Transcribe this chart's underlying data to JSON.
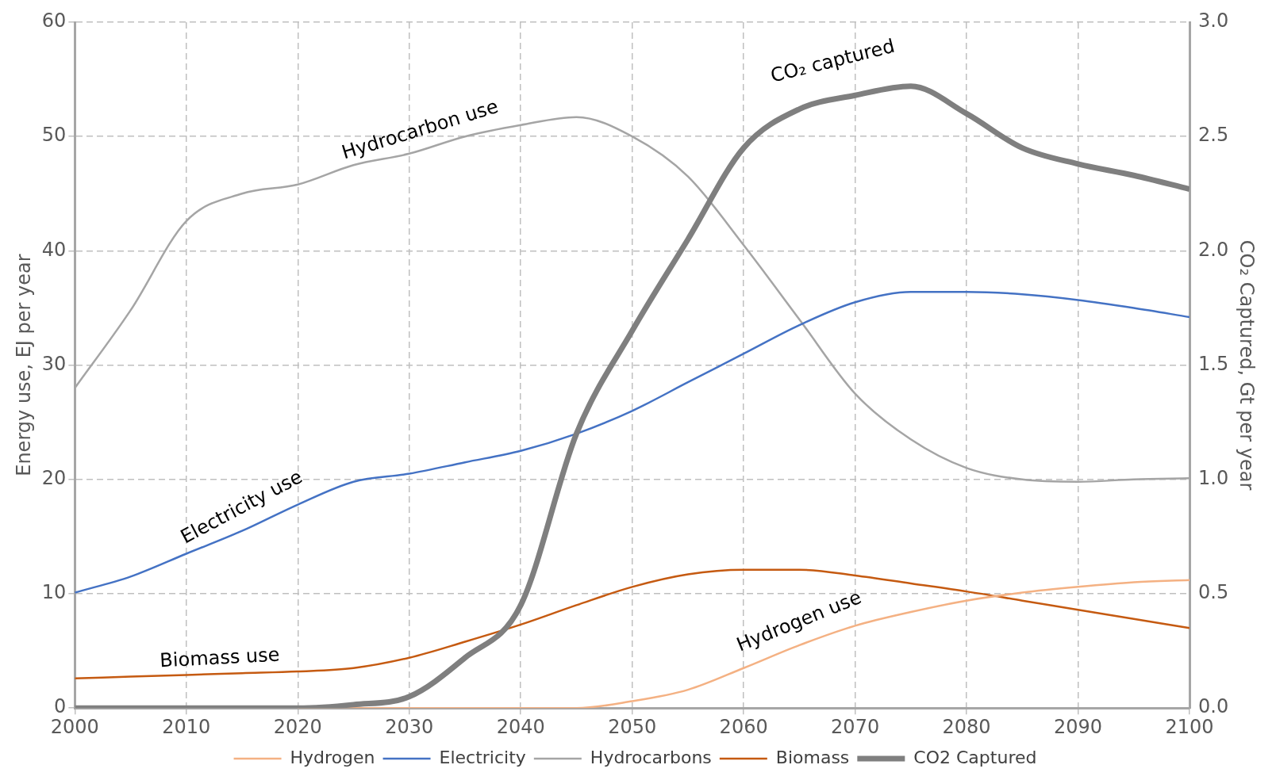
{
  "chart_data": {
    "type": "line",
    "xlabel": null,
    "ylabel": "Energy use, EJ per year",
    "y2label": "CO₂ Captured, Gt per year",
    "x": [
      2000,
      2005,
      2010,
      2015,
      2020,
      2025,
      2030,
      2035,
      2040,
      2045,
      2050,
      2055,
      2060,
      2065,
      2070,
      2075,
      2080,
      2085,
      2090,
      2095,
      2100
    ],
    "xlim": [
      2000,
      2100
    ],
    "xticks": [
      2000,
      2010,
      2020,
      2030,
      2040,
      2050,
      2060,
      2070,
      2080,
      2090,
      2100
    ],
    "ylim": [
      0,
      60
    ],
    "yticks": [
      0,
      10,
      20,
      30,
      40,
      50,
      60
    ],
    "y2lim": [
      0,
      3
    ],
    "y2ticks": [
      {
        "value": 0,
        "label": "0.0"
      },
      {
        "value": 0.5,
        "label": "0.5"
      },
      {
        "value": 1,
        "label": "1.0"
      },
      {
        "value": 1.5,
        "label": "1.5"
      },
      {
        "value": 2,
        "label": "2.0"
      },
      {
        "value": 2.5,
        "label": "2.5"
      },
      {
        "value": 3,
        "label": "3.0"
      }
    ],
    "grid": true,
    "legend": "bottom",
    "marker": "none",
    "line_style": "solid",
    "series": [
      {
        "name": "Hydrogen",
        "color": "#f4b183",
        "values": [
          null,
          null,
          null,
          null,
          0,
          0,
          0,
          0,
          0,
          0,
          0.6,
          1.6,
          3.5,
          5.5,
          7.2,
          8.4,
          9.4,
          10.1,
          10.6,
          11,
          11.2
        ]
      },
      {
        "name": "Electricity",
        "color": "#4472c4",
        "values": [
          10.1,
          11.5,
          13.5,
          15.5,
          17.8,
          19.8,
          20.5,
          21.5,
          22.5,
          24,
          26,
          28.5,
          31,
          33.5,
          35.5,
          36.4,
          36.4,
          36.2,
          35.7,
          35,
          34.2
        ]
      },
      {
        "name": "Hydrocarbons",
        "color": "#a5a5a5",
        "values": [
          28,
          34.8,
          42.6,
          45,
          45.8,
          47.5,
          48.5,
          50,
          51,
          51.7,
          50,
          46.5,
          40.5,
          34,
          27.5,
          23.5,
          21,
          20,
          19.8,
          20,
          20.1
        ]
      },
      {
        "name": "Biomass",
        "color": "#c55a11",
        "values": [
          2.6,
          2.75,
          2.9,
          3.05,
          3.2,
          3.5,
          4.4,
          5.8,
          7.3,
          9,
          10.6,
          11.7,
          12.1,
          12.1,
          11.6,
          10.9,
          10.2,
          9.4,
          8.6,
          7.8,
          7
        ]
      },
      {
        "name": "CO2 Captured",
        "color": "#7f7f7f",
        "axis": "y2",
        "values": [
          0,
          0,
          0,
          0,
          0,
          0.015,
          0.05,
          0.22,
          0.45,
          1.2,
          1.65,
          2.05,
          2.45,
          2.62,
          2.68,
          2.72,
          2.6,
          2.45,
          2.38,
          2.33,
          2.27
        ]
      }
    ],
    "annotations": [
      "Hydrocarbon use",
      "Electricity use",
      "Biomass use",
      "Hydrogen use",
      "CO₂ captured"
    ]
  }
}
